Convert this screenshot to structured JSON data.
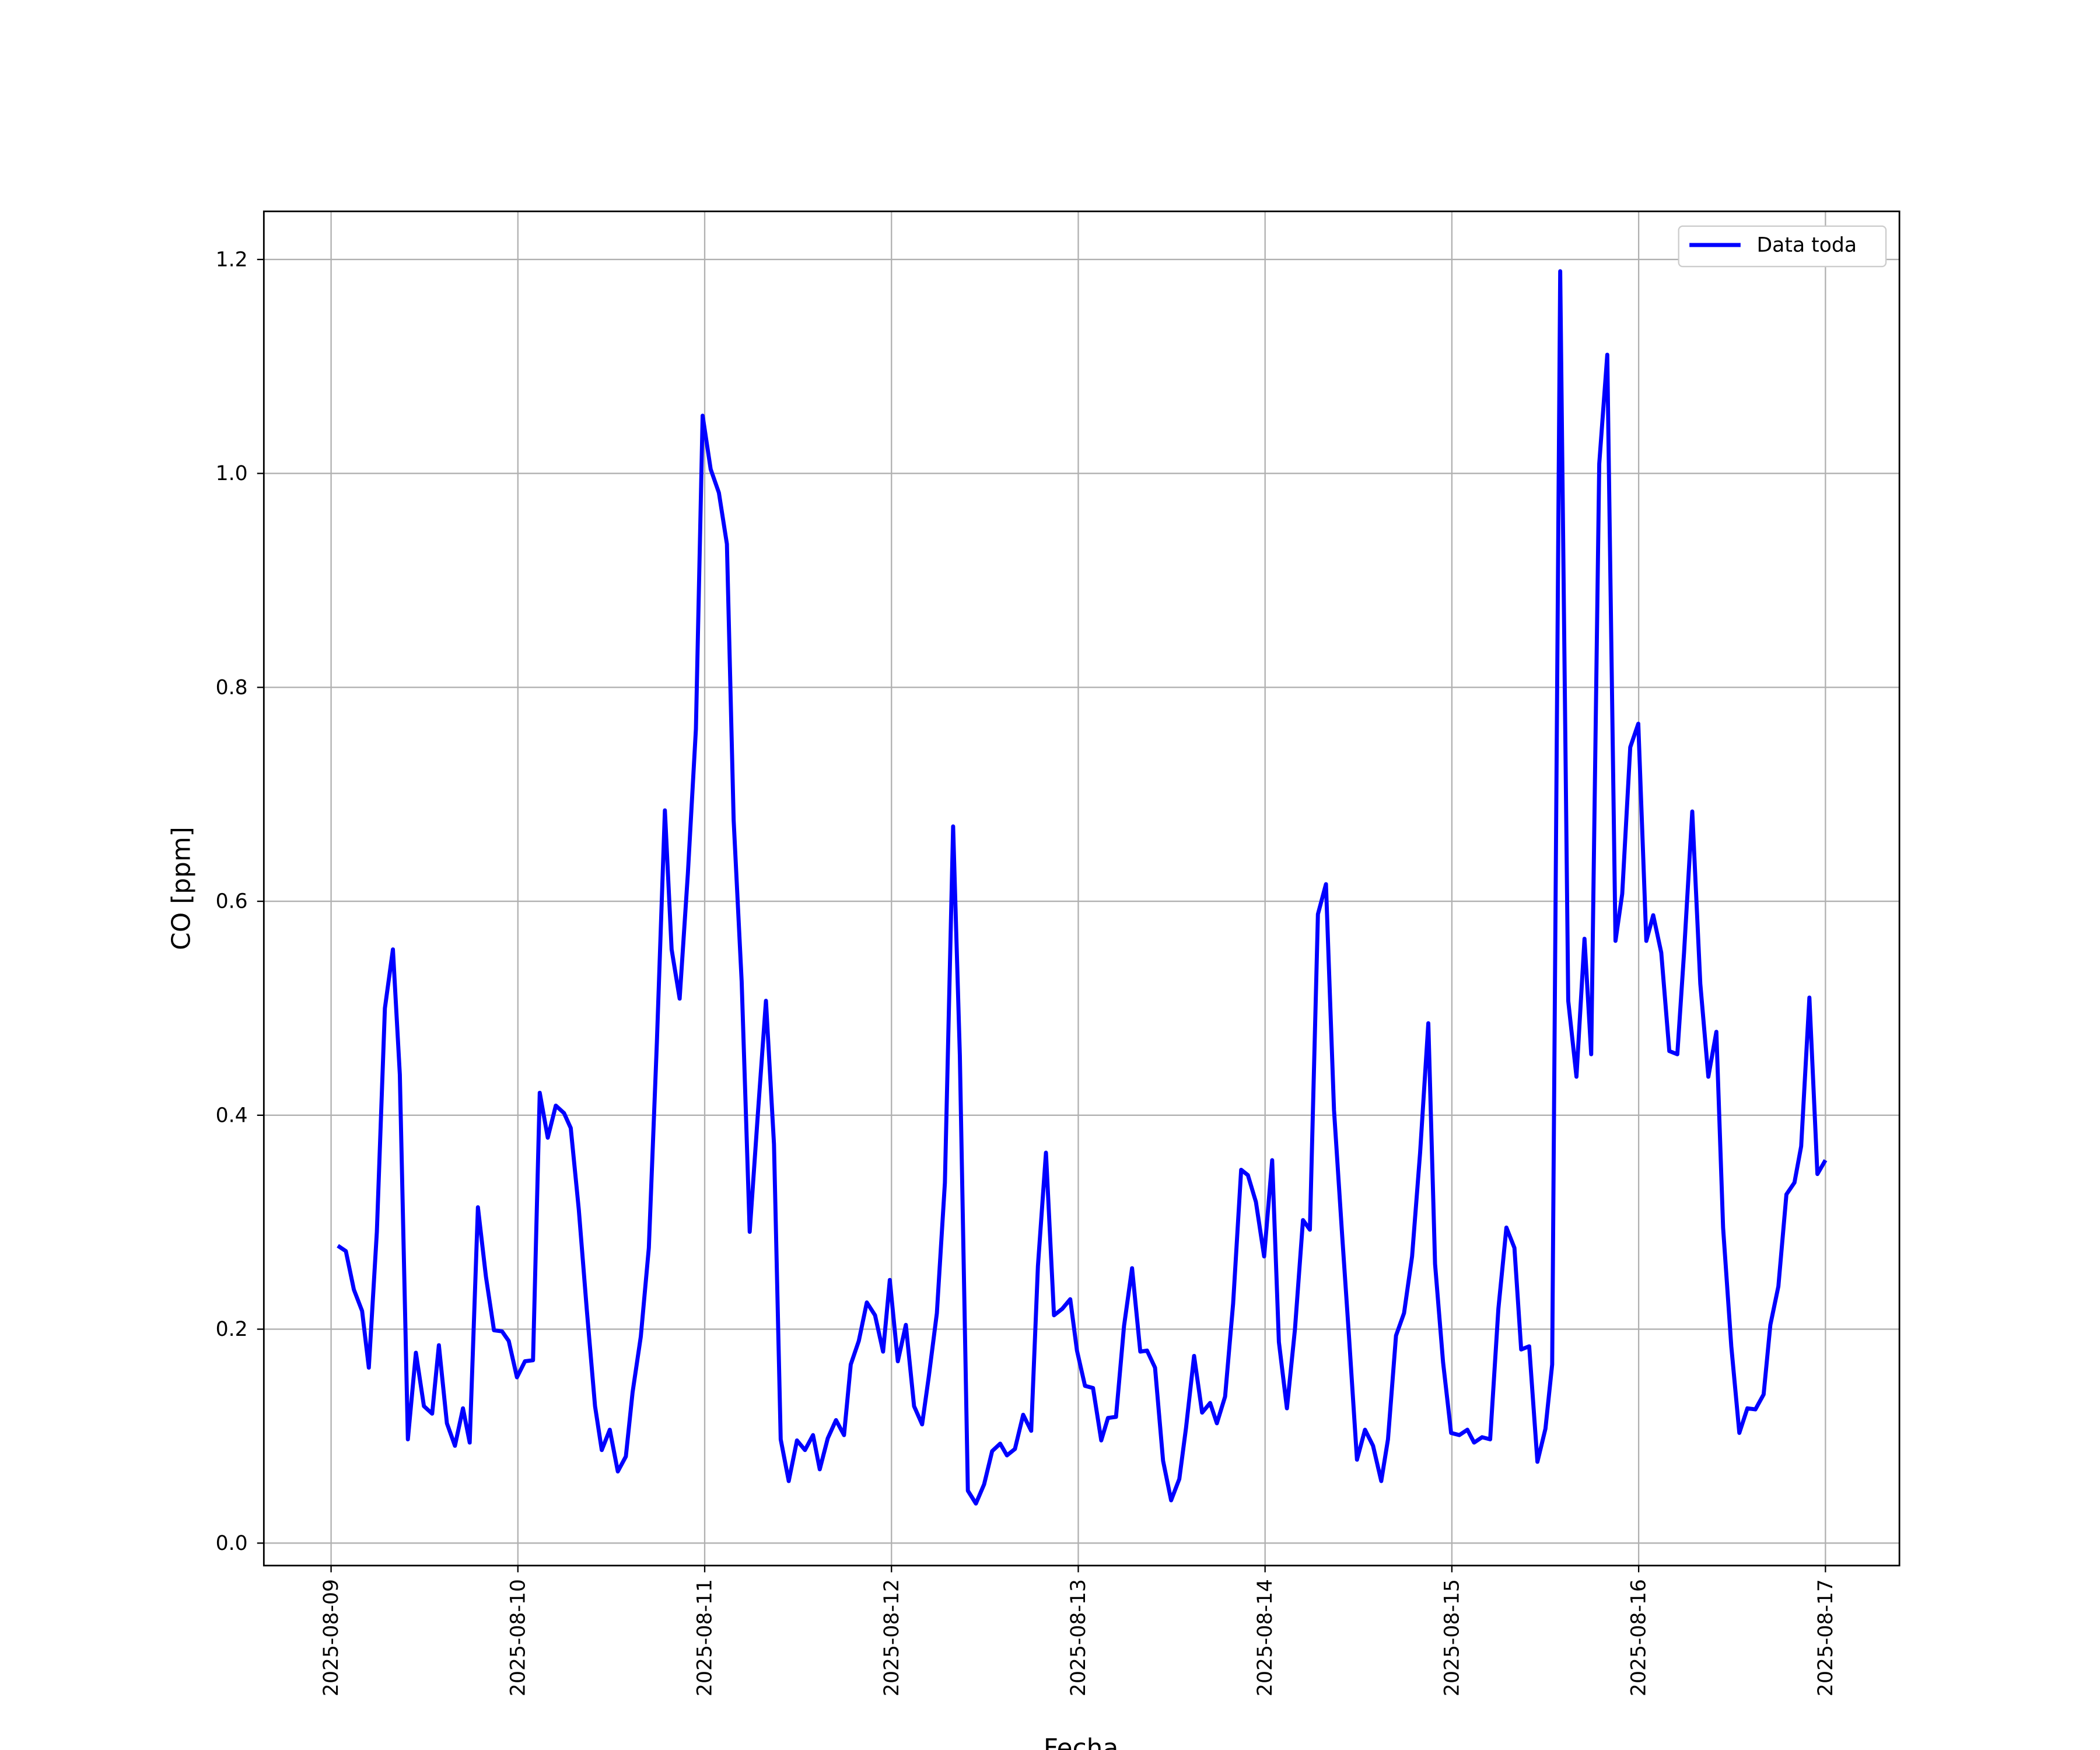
{
  "chart_data": {
    "type": "line",
    "x_label": "Fecha",
    "y_label": "CO [ppm]",
    "x": [
      0.036,
      0.079,
      0.122,
      0.166,
      0.202,
      0.245,
      0.288,
      0.331,
      0.368,
      0.411,
      0.454,
      0.497,
      0.541,
      0.577,
      0.62,
      0.663,
      0.706,
      0.742,
      0.786,
      0.829,
      0.872,
      0.915,
      0.951,
      0.995,
      1.038,
      1.081,
      1.117,
      1.16,
      1.203,
      1.247,
      1.283,
      1.326,
      1.369,
      1.413,
      1.449,
      1.492,
      1.535,
      1.578,
      1.614,
      1.658,
      1.701,
      1.744,
      1.787,
      1.823,
      1.866,
      1.91,
      1.953,
      1.989,
      2.032,
      2.076,
      2.119,
      2.155,
      2.198,
      2.241,
      2.285,
      2.328,
      2.371,
      2.407,
      2.45,
      2.494,
      2.537,
      2.58,
      2.616,
      2.659,
      2.703,
      2.746,
      2.782,
      2.825,
      2.868,
      2.912,
      2.955,
      2.991,
      3.034,
      3.077,
      3.121,
      3.164,
      3.2,
      3.243,
      3.286,
      3.33,
      3.366,
      3.409,
      3.452,
      3.496,
      3.539,
      3.582,
      3.618,
      3.661,
      3.705,
      3.748,
      3.784,
      3.827,
      3.87,
      3.914,
      3.957,
      3.993,
      4.036,
      4.079,
      4.123,
      4.159,
      4.202,
      4.245,
      4.288,
      4.332,
      4.368,
      4.411,
      4.454,
      4.497,
      4.541,
      4.577,
      4.62,
      4.663,
      4.706,
      4.742,
      4.786,
      4.829,
      4.872,
      4.908,
      4.951,
      4.995,
      5.038,
      5.074,
      5.117,
      5.16,
      5.203,
      5.24,
      5.283,
      5.326,
      5.369,
      5.413,
      5.449,
      5.492,
      5.535,
      5.578,
      5.622,
      5.658,
      5.701,
      5.744,
      5.787,
      5.83,
      5.874,
      5.91,
      5.953,
      5.996,
      6.04,
      6.083,
      6.119,
      6.162,
      6.205,
      6.249,
      6.292,
      6.335,
      6.371,
      6.414,
      6.458,
      6.501,
      6.537,
      6.58,
      6.623,
      6.667,
      6.71,
      6.746,
      6.789,
      6.832,
      6.876,
      6.912,
      6.955,
      6.998,
      7.041,
      7.078,
      7.121,
      7.164,
      7.207,
      7.243,
      7.287,
      7.33,
      7.373,
      7.416,
      7.452,
      7.496,
      7.539,
      7.582,
      7.625,
      7.669,
      7.705,
      7.748,
      7.791,
      7.834,
      7.87,
      7.914,
      7.957,
      8.0
    ],
    "series": [
      {
        "name": "Data toda",
        "color": "#0000ff",
        "values": [
          0.278,
          0.273,
          0.237,
          0.217,
          0.164,
          0.291,
          0.5,
          0.555,
          0.438,
          0.097,
          0.178,
          0.128,
          0.121,
          0.185,
          0.112,
          0.091,
          0.126,
          0.094,
          0.314,
          0.249,
          0.199,
          0.198,
          0.189,
          0.155,
          0.17,
          0.171,
          0.421,
          0.379,
          0.409,
          0.402,
          0.388,
          0.312,
          0.218,
          0.128,
          0.087,
          0.106,
          0.067,
          0.081,
          0.141,
          0.193,
          0.276,
          0.468,
          0.685,
          0.555,
          0.509,
          0.626,
          0.761,
          1.054,
          1.004,
          0.982,
          0.934,
          0.676,
          0.525,
          0.291,
          0.402,
          0.507,
          0.373,
          0.097,
          0.058,
          0.096,
          0.087,
          0.101,
          0.069,
          0.098,
          0.115,
          0.101,
          0.167,
          0.189,
          0.225,
          0.213,
          0.179,
          0.246,
          0.17,
          0.204,
          0.128,
          0.111,
          0.156,
          0.215,
          0.337,
          0.67,
          0.456,
          0.049,
          0.037,
          0.055,
          0.086,
          0.093,
          0.082,
          0.088,
          0.12,
          0.105,
          0.259,
          0.365,
          0.213,
          0.219,
          0.228,
          0.18,
          0.147,
          0.145,
          0.096,
          0.117,
          0.118,
          0.203,
          0.257,
          0.179,
          0.18,
          0.164,
          0.077,
          0.04,
          0.06,
          0.108,
          0.175,
          0.122,
          0.131,
          0.112,
          0.137,
          0.224,
          0.349,
          0.344,
          0.319,
          0.268,
          0.358,
          0.188,
          0.126,
          0.2,
          0.302,
          0.293,
          0.588,
          0.616,
          0.405,
          0.287,
          0.194,
          0.078,
          0.106,
          0.091,
          0.058,
          0.097,
          0.194,
          0.215,
          0.268,
          0.365,
          0.486,
          0.261,
          0.169,
          0.103,
          0.101,
          0.106,
          0.094,
          0.099,
          0.097,
          0.219,
          0.295,
          0.276,
          0.181,
          0.184,
          0.076,
          0.107,
          0.167,
          1.189,
          0.507,
          0.436,
          0.565,
          0.457,
          1.009,
          1.111,
          0.563,
          0.607,
          0.744,
          0.766,
          0.563,
          0.587,
          0.552,
          0.46,
          0.457,
          0.552,
          0.684,
          0.523,
          0.436,
          0.478,
          0.295,
          0.184,
          0.103,
          0.126,
          0.125,
          0.139,
          0.204,
          0.24,
          0.326,
          0.337,
          0.371,
          0.51,
          0.345,
          0.358
        ]
      }
    ],
    "xlim": [
      -0.36,
      8.396
    ],
    "xticks": [
      {
        "value": 0,
        "label": "2025-08-09"
      },
      {
        "value": 1,
        "label": "2025-08-10"
      },
      {
        "value": 2,
        "label": "2025-08-11"
      },
      {
        "value": 3,
        "label": "2025-08-12"
      },
      {
        "value": 4,
        "label": "2025-08-13"
      },
      {
        "value": 5,
        "label": "2025-08-14"
      },
      {
        "value": 6,
        "label": "2025-08-15"
      },
      {
        "value": 7,
        "label": "2025-08-16"
      },
      {
        "value": 8,
        "label": "2025-08-17"
      }
    ],
    "ylim": [
      -0.021,
      1.245
    ],
    "yticks": [
      {
        "value": 0,
        "label": "0.0"
      },
      {
        "value": 0.2,
        "label": "0.2"
      },
      {
        "value": 0.4,
        "label": "0.4"
      },
      {
        "value": 0.6,
        "label": "0.6"
      },
      {
        "value": 0.8,
        "label": "0.8"
      },
      {
        "value": 1,
        "label": "1.0"
      },
      {
        "value": 1.2,
        "label": "1.2"
      }
    ],
    "grid": true,
    "legend": "upper right"
  }
}
